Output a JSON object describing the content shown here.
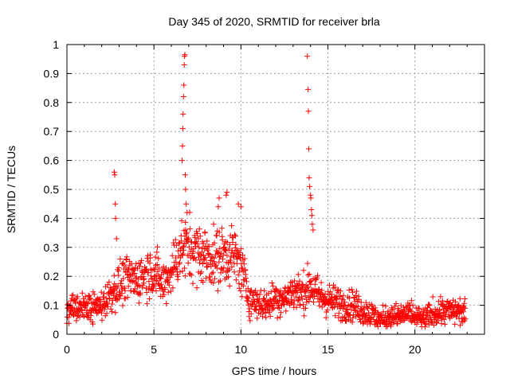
{
  "chart_data": {
    "type": "scatter",
    "title": "Day 345 of 2020, SRMTID for receiver brla",
    "xlabel": "GPS time / hours",
    "ylabel": "SRMTID / TECUs",
    "xlim": [
      0,
      24
    ],
    "ylim": [
      0,
      1
    ],
    "xticks": [
      0,
      5,
      10,
      15,
      20
    ],
    "xtick_labels": [
      "0",
      "5",
      "10",
      "15",
      "20"
    ],
    "yticks": [
      0,
      0.1,
      0.2,
      0.3,
      0.4,
      0.5,
      0.6,
      0.7,
      0.8,
      0.9,
      1
    ],
    "ytick_labels": [
      "0",
      "0.1",
      "0.2",
      "0.3",
      "0.4",
      "0.5",
      "0.6",
      "0.7",
      "0.8",
      "0.9",
      "1"
    ],
    "grid": true,
    "marker": "+",
    "color": "#ff0000",
    "trend": [
      [
        0.0,
        0.07
      ],
      [
        0.5,
        0.09
      ],
      [
        1.0,
        0.1
      ],
      [
        1.5,
        0.09
      ],
      [
        2.0,
        0.1
      ],
      [
        2.5,
        0.14
      ],
      [
        3.0,
        0.17
      ],
      [
        3.5,
        0.19
      ],
      [
        4.0,
        0.19
      ],
      [
        4.5,
        0.21
      ],
      [
        5.0,
        0.22
      ],
      [
        5.5,
        0.17
      ],
      [
        6.0,
        0.22
      ],
      [
        6.5,
        0.29
      ],
      [
        7.0,
        0.3
      ],
      [
        7.5,
        0.28
      ],
      [
        8.0,
        0.27
      ],
      [
        8.5,
        0.26
      ],
      [
        9.0,
        0.27
      ],
      [
        9.5,
        0.28
      ],
      [
        10.0,
        0.23
      ],
      [
        10.5,
        0.12
      ],
      [
        11.0,
        0.11
      ],
      [
        11.5,
        0.1
      ],
      [
        12.0,
        0.13
      ],
      [
        12.5,
        0.12
      ],
      [
        13.0,
        0.15
      ],
      [
        13.5,
        0.14
      ],
      [
        14.0,
        0.17
      ],
      [
        14.5,
        0.13
      ],
      [
        15.0,
        0.12
      ],
      [
        15.5,
        0.11
      ],
      [
        16.0,
        0.1
      ],
      [
        16.5,
        0.1
      ],
      [
        17.0,
        0.08
      ],
      [
        17.5,
        0.07
      ],
      [
        18.0,
        0.05
      ],
      [
        18.5,
        0.06
      ],
      [
        19.0,
        0.06
      ],
      [
        19.5,
        0.07
      ],
      [
        20.0,
        0.06
      ],
      [
        20.5,
        0.05
      ],
      [
        21.0,
        0.07
      ],
      [
        21.5,
        0.08
      ],
      [
        22.0,
        0.08
      ],
      [
        22.5,
        0.08
      ],
      [
        22.9,
        0.07
      ]
    ],
    "spikes": [
      [
        2.72,
        0.56
      ],
      [
        2.75,
        0.55
      ],
      [
        2.78,
        0.45
      ],
      [
        2.8,
        0.4
      ],
      [
        2.85,
        0.33
      ],
      [
        6.62,
        0.6
      ],
      [
        6.64,
        0.65
      ],
      [
        6.66,
        0.71
      ],
      [
        6.68,
        0.76
      ],
      [
        6.7,
        0.82
      ],
      [
        6.72,
        0.86
      ],
      [
        6.74,
        0.93
      ],
      [
        6.76,
        0.96
      ],
      [
        6.78,
        0.965
      ],
      [
        6.8,
        0.55
      ],
      [
        6.82,
        0.5
      ],
      [
        6.85,
        0.45
      ],
      [
        6.9,
        0.42
      ],
      [
        8.7,
        0.44
      ],
      [
        8.75,
        0.47
      ],
      [
        9.15,
        0.48
      ],
      [
        9.2,
        0.49
      ],
      [
        9.85,
        0.45
      ],
      [
        10.0,
        0.44
      ],
      [
        13.82,
        0.96
      ],
      [
        13.86,
        0.845
      ],
      [
        13.88,
        0.77
      ],
      [
        13.9,
        0.64
      ],
      [
        13.92,
        0.54
      ],
      [
        13.95,
        0.51
      ],
      [
        14.0,
        0.48
      ],
      [
        14.02,
        0.47
      ],
      [
        14.05,
        0.43
      ],
      [
        14.08,
        0.41
      ],
      [
        14.1,
        0.38
      ],
      [
        14.15,
        0.36
      ]
    ],
    "n_points": 1400
  }
}
